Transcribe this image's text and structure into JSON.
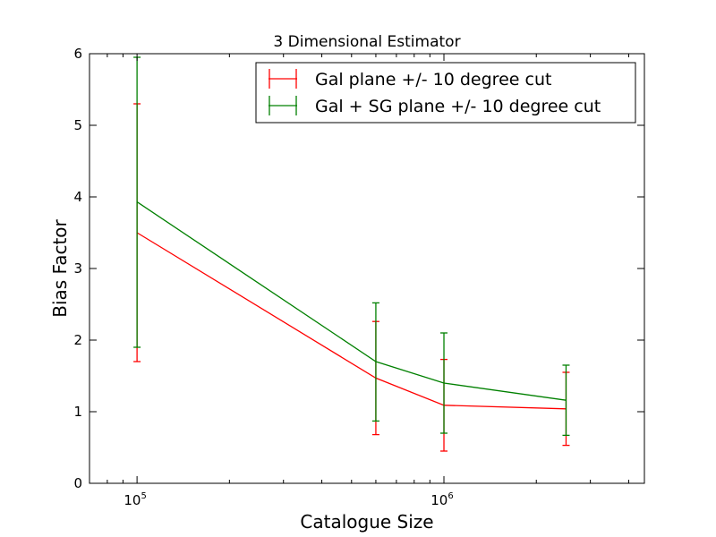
{
  "chart_data": {
    "type": "line",
    "title": "3 Dimensional Estimator",
    "xlabel": "Catalogue Size",
    "ylabel": "Bias Factor",
    "xscale": "log",
    "xlim": [
      70000,
      4500000
    ],
    "ylim": [
      0,
      6
    ],
    "grid": false,
    "legend_position": "top-right",
    "xticks_major": [
      {
        "value": 100000,
        "base": "10",
        "exp": "5"
      },
      {
        "value": 1000000,
        "base": "10",
        "exp": "6"
      }
    ],
    "xticks_minor": [
      70000,
      80000,
      90000,
      200000,
      300000,
      400000,
      500000,
      600000,
      700000,
      800000,
      900000,
      2000000,
      3000000,
      4000000
    ],
    "yticks": [
      {
        "value": 0,
        "label": "0"
      },
      {
        "value": 1,
        "label": "1"
      },
      {
        "value": 2,
        "label": "2"
      },
      {
        "value": 3,
        "label": "3"
      },
      {
        "value": 4,
        "label": "4"
      },
      {
        "value": 5,
        "label": "5"
      },
      {
        "value": 6,
        "label": "6"
      }
    ],
    "series": [
      {
        "name": "Gal plane +/- 10 degree cut",
        "color": "#ff0000",
        "x": [
          100000,
          600000,
          1000000,
          2500000
        ],
        "y": [
          3.5,
          1.47,
          1.09,
          1.04
        ],
        "err_low": [
          1.7,
          0.68,
          0.45,
          0.53
        ],
        "err_high": [
          5.3,
          2.26,
          1.73,
          1.55
        ]
      },
      {
        "name": "Gal + SG plane +/- 10 degree cut",
        "color": "#008000",
        "x": [
          100000,
          600000,
          1000000,
          2500000
        ],
        "y": [
          3.93,
          1.7,
          1.4,
          1.16
        ],
        "err_low": [
          1.9,
          0.87,
          0.7,
          0.67
        ],
        "err_high": [
          5.95,
          2.52,
          2.1,
          1.65
        ]
      }
    ]
  }
}
